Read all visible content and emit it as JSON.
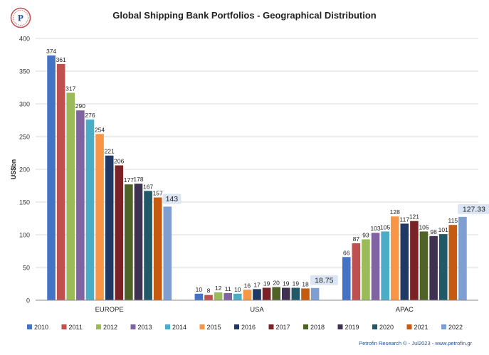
{
  "title": "Global Shipping Bank Portfolios - Geographical Distribution",
  "footer": "Petrofin Research © - Jul2023 - www.petrofin.gr",
  "logo_letter": "P",
  "chart_data": {
    "type": "bar",
    "title": "Global Shipping Bank Portfolios - Geographical Distribution",
    "xlabel": "",
    "ylabel": "US$bn",
    "ylim": [
      0,
      400
    ],
    "yticks": [
      0,
      50,
      100,
      150,
      200,
      250,
      300,
      350,
      400
    ],
    "grid": true,
    "legend_position": "bottom",
    "categories": [
      "EUROPE",
      "USA",
      "APAC"
    ],
    "series": [
      {
        "name": "2010",
        "color": "#4472c4",
        "values": [
          374,
          10,
          66
        ],
        "labels": [
          "374",
          "10",
          "66"
        ]
      },
      {
        "name": "2011",
        "color": "#c0504d",
        "values": [
          361,
          8,
          87
        ],
        "labels": [
          "361",
          "8",
          "87"
        ]
      },
      {
        "name": "2012",
        "color": "#9bbb59",
        "values": [
          317,
          12,
          93
        ],
        "labels": [
          "317",
          "12",
          "93"
        ]
      },
      {
        "name": "2013",
        "color": "#8064a2",
        "values": [
          290,
          11,
          103
        ],
        "labels": [
          "290",
          "11",
          "103"
        ]
      },
      {
        "name": "2014",
        "color": "#4bacc6",
        "values": [
          276,
          10,
          105
        ],
        "labels": [
          "276",
          "10",
          "105"
        ]
      },
      {
        "name": "2015",
        "color": "#f79646",
        "values": [
          254,
          16,
          128
        ],
        "labels": [
          "254",
          "16",
          "128"
        ]
      },
      {
        "name": "2016",
        "color": "#1f3864",
        "values": [
          221,
          17,
          117
        ],
        "labels": [
          "221",
          "17",
          "117"
        ]
      },
      {
        "name": "2017",
        "color": "#7b2226",
        "values": [
          206,
          19,
          121
        ],
        "labels": [
          "206",
          "19",
          "121"
        ]
      },
      {
        "name": "2018",
        "color": "#4f6228",
        "values": [
          177,
          20,
          105
        ],
        "labels": [
          "177",
          "20",
          "105"
        ]
      },
      {
        "name": "2019",
        "color": "#3f3151",
        "values": [
          178,
          19,
          98
        ],
        "labels": [
          "178",
          "19",
          "98"
        ]
      },
      {
        "name": "2020",
        "color": "#215968",
        "values": [
          167,
          19,
          101
        ],
        "labels": [
          "167",
          "19",
          "101"
        ]
      },
      {
        "name": "2021",
        "color": "#c55a11",
        "values": [
          157,
          18,
          115
        ],
        "labels": [
          "157",
          "18",
          "115"
        ]
      },
      {
        "name": "2022",
        "color": "#7f9fd3",
        "values": [
          143,
          18.75,
          127.33
        ],
        "labels": [
          "143",
          "18.75",
          "127.33"
        ],
        "highlight": true
      }
    ]
  }
}
